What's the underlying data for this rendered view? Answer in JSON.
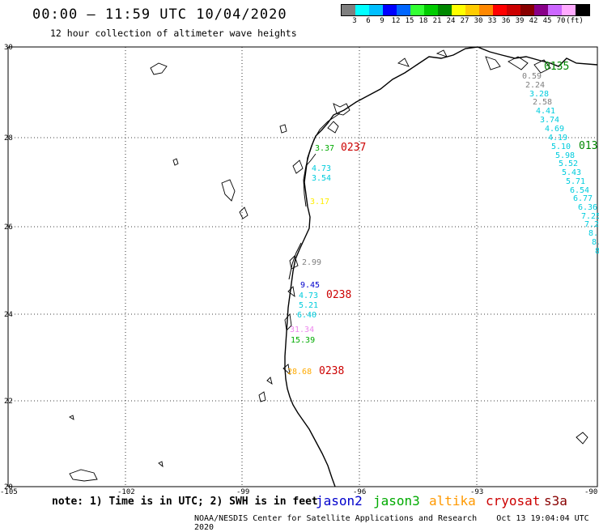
{
  "header": {
    "title": "00:00 — 11:59 UTC 10/04/2020",
    "subtitle": "12 hour collection of altimeter wave heights"
  },
  "legend": {
    "colors": [
      "#7f7f7f",
      "#00ffff",
      "#00bfff",
      "#0000ff",
      "#0066ff",
      "#33ff33",
      "#00cc00",
      "#008800",
      "#ffff00",
      "#ffcc00",
      "#ff8800",
      "#ff0000",
      "#cc0000",
      "#880000",
      "#880088",
      "#cc66ff",
      "#ffaaff",
      "#000000"
    ],
    "labels": [
      "3",
      "6",
      "9",
      "12",
      "15",
      "18",
      "21",
      "24",
      "27",
      "30",
      "33",
      "36",
      "39",
      "42",
      "45",
      "70",
      "(ft)"
    ]
  },
  "axes": {
    "x_ticks": [
      "-105",
      "-102",
      "-99",
      "-96",
      "-93",
      "-90"
    ],
    "y_ticks": [
      "30",
      "28",
      "26",
      "24",
      "22",
      "20"
    ]
  },
  "passes": [
    {
      "id": "0135",
      "color": "#008800",
      "text": "0135"
    },
    {
      "id": "013",
      "color": "#008800",
      "text": "013"
    },
    {
      "id": "0237",
      "color": "#cc0000",
      "text": "0237"
    },
    {
      "id": "0238a",
      "color": "#cc0000",
      "text": "0238"
    },
    {
      "id": "0238b",
      "color": "#cc0000",
      "text": "0238"
    }
  ],
  "values": [
    {
      "t": "0.59",
      "c": "#7f7f7f"
    },
    {
      "t": "2.24",
      "c": "#7f7f7f"
    },
    {
      "t": "2.58",
      "c": "#7f7f7f"
    },
    {
      "t": "3.28",
      "c": "#00ccdd"
    },
    {
      "t": "4.41",
      "c": "#00ccdd"
    },
    {
      "t": "3.74",
      "c": "#00ccdd"
    },
    {
      "t": "4.69",
      "c": "#00ccdd"
    },
    {
      "t": "4.19",
      "c": "#00ccdd"
    },
    {
      "t": "5.10",
      "c": "#00ccdd"
    },
    {
      "t": "5.98",
      "c": "#00ccdd"
    },
    {
      "t": "5.52",
      "c": "#00ccdd"
    },
    {
      "t": "5.43",
      "c": "#00ccdd"
    },
    {
      "t": "5.71",
      "c": "#00ccdd"
    },
    {
      "t": "6.54",
      "c": "#00ccdd"
    },
    {
      "t": "6.77",
      "c": "#00ccdd"
    },
    {
      "t": "6.36",
      "c": "#00ccdd"
    },
    {
      "t": "7.25",
      "c": "#00ccdd"
    },
    {
      "t": "7.2",
      "c": "#00ccdd"
    },
    {
      "t": "8.",
      "c": "#00ccdd"
    },
    {
      "t": "8.",
      "c": "#00ccdd"
    },
    {
      "t": "8",
      "c": "#00ccdd"
    },
    {
      "t": "3.37",
      "c": "#00aa00"
    },
    {
      "t": "4.73",
      "c": "#00ccdd"
    },
    {
      "t": "3.54",
      "c": "#00ccdd"
    },
    {
      "t": "3.17",
      "c": "#ffee00"
    },
    {
      "t": "2.99",
      "c": "#7f7f7f"
    },
    {
      "t": "9.45",
      "c": "#0000cc"
    },
    {
      "t": "4.73",
      "c": "#00ccdd"
    },
    {
      "t": "5.21",
      "c": "#00ccdd"
    },
    {
      "t": "6.40",
      "c": "#00ccdd"
    },
    {
      "t": "31.34",
      "c": "#ee88ee"
    },
    {
      "t": "15.39",
      "c": "#00aa00"
    },
    {
      "t": "28.68",
      "c": "#ffaa00"
    }
  ],
  "footer": {
    "note": "note: 1) Time is in UTC; 2) SWH is in feet",
    "satellites": [
      {
        "name": "jason2",
        "color": "#0000cc"
      },
      {
        "name": "jason3",
        "color": "#00aa00"
      },
      {
        "name": "altika",
        "color": "#ff9900"
      },
      {
        "name": "cryosat",
        "color": "#cc0000"
      },
      {
        "name": "s3a",
        "color": "#880000"
      }
    ],
    "credit": "NOAA/NESDIS Center for Satellite Applications and Research",
    "timestamp": "Oct 13 19:04:04 UTC 2020"
  }
}
